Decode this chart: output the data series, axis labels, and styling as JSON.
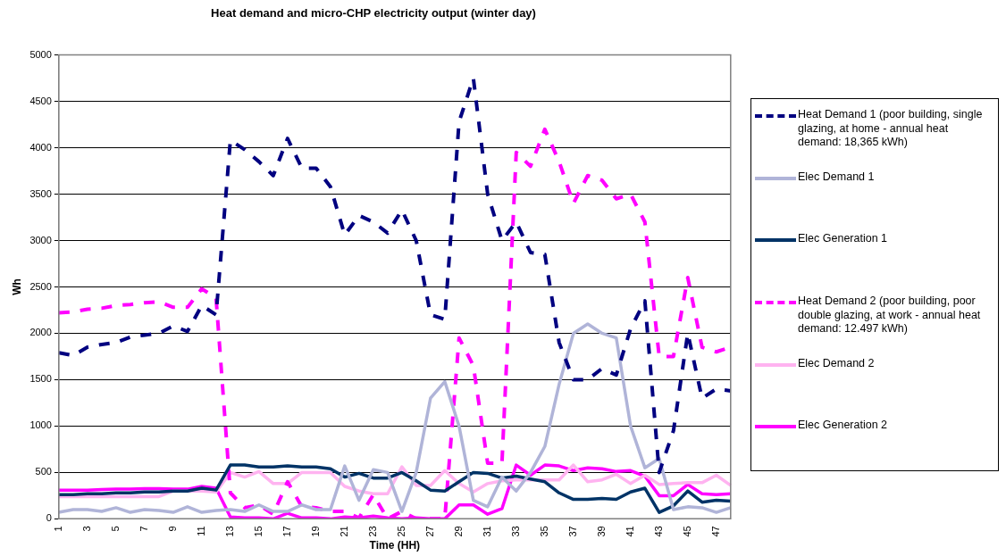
{
  "chart_data": {
    "type": "line",
    "title": "Heat demand and micro-CHP electricity output (winter day)",
    "xlabel": "Time (HH)",
    "ylabel": "Wh",
    "categories": [
      "1",
      null,
      "3",
      null,
      "5",
      null,
      "7",
      null,
      "9",
      null,
      "11",
      null,
      "13",
      null,
      "15",
      null,
      "17",
      null,
      "19",
      null,
      "21",
      null,
      "23",
      null,
      "25",
      null,
      "27",
      null,
      "29",
      null,
      "31",
      null,
      "33",
      null,
      "35",
      null,
      "37",
      null,
      "39",
      null,
      "41",
      null,
      "43",
      null,
      "45",
      null,
      "47",
      null
    ],
    "ylim": [
      0,
      5000
    ],
    "yticks": [
      0,
      500,
      1000,
      1500,
      2000,
      2500,
      3000,
      3500,
      4000,
      4500,
      5000
    ],
    "grid": "y",
    "legend": "right",
    "marker": "none",
    "series": [
      {
        "name": "Heat Demand 1 (poor building, single glazing, at home - annual heat demand: 18,365 kWh)",
        "color": "#000080",
        "line_style": "dashed",
        "values": [
          1790,
          1760,
          1850,
          1880,
          1900,
          1960,
          1980,
          2000,
          2080,
          2020,
          2300,
          2200,
          4080,
          3980,
          3850,
          3700,
          4100,
          3780,
          3780,
          3580,
          3060,
          3270,
          3200,
          3080,
          3330,
          3000,
          2200,
          2150,
          4280,
          4750,
          3500,
          3000,
          3200,
          2870,
          2850,
          1900,
          1500,
          1500,
          1620,
          1550,
          2050,
          2350,
          500,
          950,
          2000,
          1300,
          1400,
          1380
        ]
      },
      {
        "name": "Elec Demand 1",
        "color": "#b0b4d8",
        "line_style": "solid",
        "values": [
          70,
          100,
          100,
          80,
          120,
          70,
          100,
          90,
          70,
          130,
          70,
          90,
          100,
          80,
          150,
          80,
          80,
          150,
          100,
          100,
          570,
          200,
          530,
          500,
          80,
          500,
          1300,
          1480,
          1000,
          200,
          130,
          450,
          300,
          500,
          780,
          1450,
          2000,
          2100,
          2000,
          1950,
          1000,
          550,
          650,
          100,
          130,
          120,
          70,
          120
        ]
      },
      {
        "name": "Elec Generation 1",
        "color": "#003366",
        "line_style": "solid",
        "values": [
          260,
          260,
          270,
          270,
          280,
          280,
          290,
          290,
          300,
          300,
          330,
          310,
          580,
          580,
          560,
          560,
          570,
          560,
          560,
          540,
          450,
          490,
          440,
          440,
          500,
          410,
          310,
          300,
          400,
          500,
          490,
          440,
          460,
          430,
          400,
          280,
          210,
          210,
          220,
          210,
          290,
          330,
          70,
          140,
          300,
          180,
          200,
          190
        ]
      },
      {
        "name": "Heat Demand 2 (poor building, poor double glazing, at work - annual heat demand: 12.497 kWh)",
        "color": "#ff00ff",
        "line_style": "dashed",
        "values": [
          2220,
          2230,
          2260,
          2270,
          2300,
          2310,
          2330,
          2340,
          2280,
          2280,
          2480,
          2380,
          280,
          120,
          150,
          50,
          400,
          130,
          120,
          80,
          80,
          10,
          260,
          0,
          80,
          0,
          0,
          0,
          1950,
          1650,
          600,
          600,
          3950,
          3800,
          4200,
          3850,
          3400,
          3700,
          3650,
          3450,
          3500,
          3200,
          1750,
          1750,
          2600,
          1850,
          1800,
          1850
        ]
      },
      {
        "name": "Elec Demand 2",
        "color": "#ffb3f0",
        "line_style": "solid",
        "values": [
          240,
          240,
          240,
          240,
          240,
          240,
          240,
          240,
          300,
          300,
          300,
          290,
          500,
          450,
          510,
          380,
          380,
          500,
          500,
          500,
          350,
          300,
          270,
          270,
          560,
          360,
          360,
          520,
          380,
          290,
          380,
          410,
          420,
          420,
          420,
          420,
          580,
          400,
          420,
          480,
          380,
          470,
          370,
          380,
          390,
          390,
          470,
          360
        ]
      },
      {
        "name": "Elec Generation 2",
        "color": "#ff00ff",
        "line_style": "solid",
        "values": [
          310,
          310,
          310,
          315,
          320,
          320,
          325,
          325,
          320,
          320,
          350,
          330,
          20,
          10,
          10,
          0,
          60,
          10,
          10,
          0,
          20,
          10,
          30,
          10,
          0,
          10,
          0,
          0,
          150,
          150,
          50,
          110,
          580,
          470,
          580,
          570,
          520,
          550,
          540,
          510,
          520,
          460,
          250,
          250,
          370,
          270,
          260,
          270
        ]
      }
    ]
  }
}
